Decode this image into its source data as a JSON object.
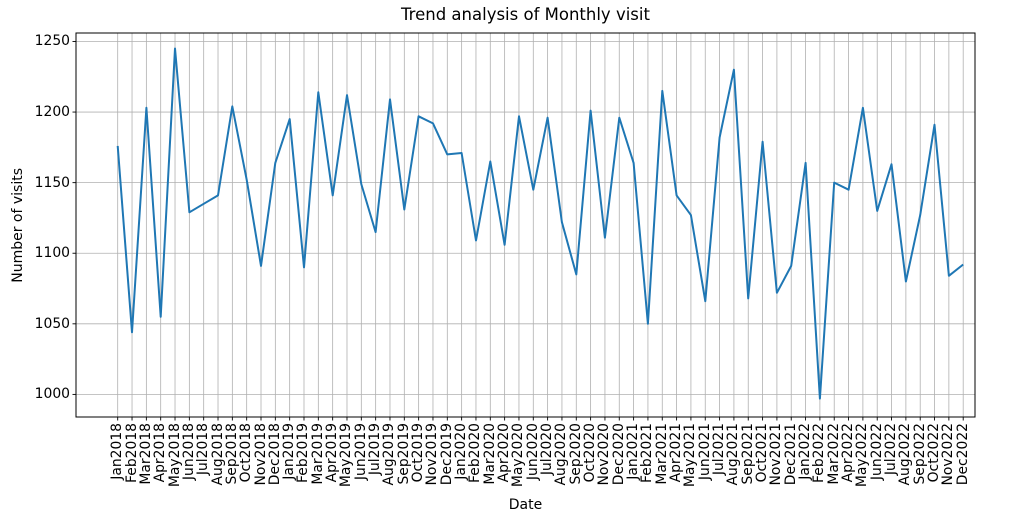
{
  "chart_data": {
    "type": "line",
    "title": "Trend analysis of Monthly visit",
    "xlabel": "Date",
    "ylabel": "Number of visits",
    "categories": [
      "Jan2018",
      "Feb2018",
      "Mar2018",
      "Apr2018",
      "May2018",
      "Jun2018",
      "Jul2018",
      "Aug2018",
      "Sep2018",
      "Oct2018",
      "Nov2018",
      "Dec2018",
      "Jan2019",
      "Feb2019",
      "Mar2019",
      "Apr2019",
      "May2019",
      "Jun2019",
      "Jul2019",
      "Aug2019",
      "Sep2019",
      "Oct2019",
      "Nov2019",
      "Dec2019",
      "Jan2020",
      "Feb2020",
      "Mar2020",
      "Apr2020",
      "May2020",
      "Jun2020",
      "Jul2020",
      "Aug2020",
      "Sep2020",
      "Oct2020",
      "Nov2020",
      "Dec2020",
      "Jan2021",
      "Feb2021",
      "Mar2021",
      "Apr2021",
      "May2021",
      "Jun2021",
      "Jul2021",
      "Aug2021",
      "Sep2021",
      "Oct2021",
      "Nov2021",
      "Dec2021",
      "Jan2022",
      "Feb2022",
      "Mar2022",
      "Apr2022",
      "May2022",
      "Jun2022",
      "Jul2022",
      "Aug2022",
      "Sep2022",
      "Oct2022",
      "Nov2022",
      "Dec2022"
    ],
    "values": [
      1176,
      1044,
      1203,
      1055,
      1245,
      1129,
      1135,
      1141,
      1204,
      1152,
      1091,
      1164,
      1195,
      1090,
      1214,
      1141,
      1212,
      1149,
      1115,
      1209,
      1131,
      1197,
      1192,
      1170,
      1171,
      1109,
      1165,
      1106,
      1197,
      1145,
      1196,
      1122,
      1085,
      1201,
      1111,
      1196,
      1164,
      1050,
      1215,
      1141,
      1127,
      1066,
      1182,
      1230,
      1068,
      1179,
      1072,
      1091,
      1164,
      997,
      1150,
      1145,
      1203,
      1130,
      1163,
      1080,
      1127,
      1191,
      1084,
      1092
    ],
    "yticks": [
      1000,
      1050,
      1100,
      1150,
      1200,
      1250
    ],
    "ylim": [
      984,
      1256
    ],
    "grid": true,
    "legend_position": "none",
    "line_color": "#1f77b4",
    "grid_color": "#b0b0b0",
    "axis_color": "#000000"
  }
}
